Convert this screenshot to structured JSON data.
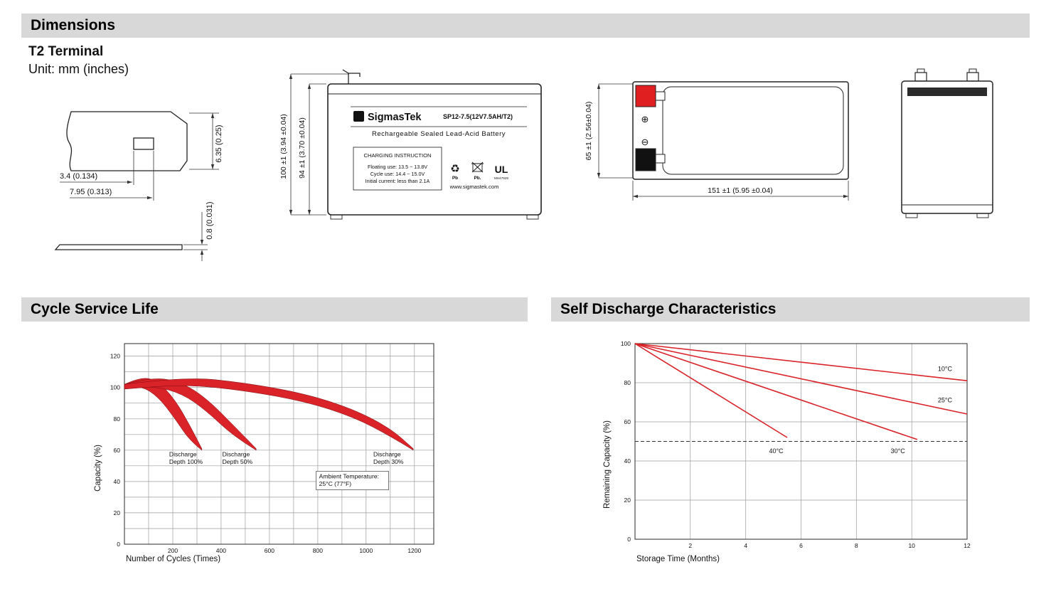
{
  "page": {
    "accent_red": "#d92329",
    "bar_bg": "#d8d8d8"
  },
  "headers": {
    "dimensions": "Dimensions",
    "cycle_life": "Cycle Service Life",
    "self_discharge": "Self Discharge Characteristics"
  },
  "terminal_info": {
    "title": "T2 Terminal",
    "unit": "Unit: mm (inches)"
  },
  "terminal_drawing": {
    "dim_tab_height": "6.35 (0.25)",
    "dim_slot_offset": "3.4 (0.134)",
    "dim_tab_width": "7.95 (0.313)",
    "dim_thickness": "0.8 (0.031)"
  },
  "front_view": {
    "dim_total_height": "100 ±1 (3.94 ±0.04)",
    "dim_case_height": "94 ±1 (3.70 ±0.04)",
    "brand": "SigmasTek",
    "logo_glyph": "Σ",
    "model": "SP12-7.5(12V7.5AH/T2)",
    "type_line": "Rechargeable Sealed Lead-Acid Battery",
    "charging_title": "CHARGING INSTRUCTION",
    "charging_line1": "Floating use: 13.5 ~ 13.8V",
    "charging_line2": "Cycle use: 14.4 ~ 15.0V",
    "charging_line3": "Initial current: less than 2.1A",
    "website": "www.sigmastek.com",
    "recycle_glyph": "♻",
    "recycle_label": "Pb",
    "bin_label": "Pb.",
    "ul_mark": "UL",
    "ul_code": "MH47929"
  },
  "top_view": {
    "dim_depth": "65 ±1 (2.56±0.04)",
    "dim_width": "151 ±1 (5.95 ±0.04)",
    "positive_symbol": "⊕",
    "negative_symbol": "⊖"
  },
  "chart_data": [
    {
      "type": "area",
      "title": "Cycle Service Life",
      "xlabel": "Number of Cycles (Times)",
      "ylabel": "Capacity (%)",
      "xlim": [
        0,
        1280
      ],
      "ylim": [
        0,
        128
      ],
      "x_ticks": [
        200,
        400,
        600,
        800,
        1000,
        1200
      ],
      "y_ticks": [
        0,
        20,
        40,
        60,
        80,
        100,
        120
      ],
      "x_grid_step": 100,
      "y_grid_step": 10,
      "grid": true,
      "legend_position": "none",
      "bands": [
        {
          "name": "Discharge Depth 100%",
          "upper": [
            [
              0,
              102
            ],
            [
              70,
              107
            ],
            [
              140,
              104
            ],
            [
              210,
              92
            ],
            [
              270,
              76
            ],
            [
              320,
              61
            ]
          ],
          "lower": [
            [
              0,
              99
            ],
            [
              70,
              101
            ],
            [
              140,
              94
            ],
            [
              210,
              80
            ],
            [
              270,
              66
            ],
            [
              320,
              60
            ]
          ]
        },
        {
          "name": "Discharge Depth 50%",
          "upper": [
            [
              0,
              102
            ],
            [
              120,
              107
            ],
            [
              240,
              103
            ],
            [
              340,
              93
            ],
            [
              450,
              76
            ],
            [
              545,
              61
            ]
          ],
          "lower": [
            [
              0,
              99
            ],
            [
              120,
              101
            ],
            [
              240,
              96
            ],
            [
              340,
              85
            ],
            [
              450,
              69
            ],
            [
              545,
              60
            ]
          ]
        },
        {
          "name": "Discharge Depth 30%",
          "upper": [
            [
              0,
              102
            ],
            [
              250,
              107
            ],
            [
              500,
              103
            ],
            [
              750,
              96
            ],
            [
              950,
              86
            ],
            [
              1100,
              74
            ],
            [
              1195,
              61
            ]
          ],
          "lower": [
            [
              0,
              99
            ],
            [
              250,
              102
            ],
            [
              500,
              98
            ],
            [
              750,
              91
            ],
            [
              950,
              81
            ],
            [
              1100,
              69
            ],
            [
              1195,
              60
            ]
          ]
        }
      ],
      "annotations": [
        {
          "lines": [
            "Discharge",
            "Depth 100%"
          ],
          "x": 185,
          "y": 56,
          "boxed": false
        },
        {
          "lines": [
            "Discharge",
            "Depth 50%"
          ],
          "x": 405,
          "y": 56,
          "boxed": false
        },
        {
          "lines": [
            "Discharge",
            "Depth 30%"
          ],
          "x": 1030,
          "y": 56,
          "boxed": false
        },
        {
          "lines": [
            "Ambient Temperature:",
            "25°C (77°F)"
          ],
          "x": 805,
          "y": 42,
          "boxed": true
        }
      ]
    },
    {
      "type": "line",
      "title": "Self Discharge Characteristics",
      "xlabel": "Storage Time (Months)",
      "ylabel": "Remaining Capacity (%)",
      "xlim": [
        0,
        12
      ],
      "ylim": [
        0,
        100
      ],
      "x_ticks": [
        2,
        4,
        6,
        8,
        10,
        12
      ],
      "y_ticks": [
        0,
        20,
        40,
        60,
        80,
        100
      ],
      "x_grid_step": 2,
      "y_grid_step": 20,
      "grid": true,
      "dashed_line_y": 50,
      "series": [
        {
          "name": "10°C",
          "points": [
            [
              0,
              100
            ],
            [
              12,
              81
            ]
          ],
          "label_x": 11.2,
          "label_y": 86
        },
        {
          "name": "25°C",
          "points": [
            [
              0,
              100
            ],
            [
              12,
              64
            ]
          ],
          "label_x": 11.2,
          "label_y": 70
        },
        {
          "name": "30°C",
          "points": [
            [
              0,
              100
            ],
            [
              10.2,
              51
            ]
          ],
          "label_x": 9.5,
          "label_y": 44
        },
        {
          "name": "40°C",
          "points": [
            [
              0,
              100
            ],
            [
              5.5,
              52
            ]
          ],
          "label_x": 5.1,
          "label_y": 44
        }
      ]
    }
  ]
}
